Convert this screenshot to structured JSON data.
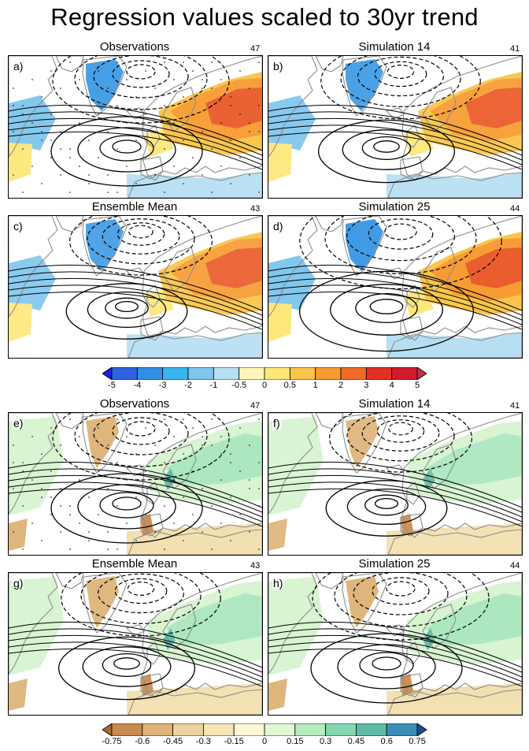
{
  "title": "Regression values scaled to 30yr trend",
  "panels": [
    {
      "letter": "a)",
      "title": "Observations",
      "number": "47",
      "scheme": "temp",
      "intensity": 1.0,
      "stipple": true
    },
    {
      "letter": "b)",
      "title": "Simulation 14",
      "number": "41",
      "scheme": "temp",
      "intensity": 0.9,
      "stipple": false
    },
    {
      "letter": "c)",
      "title": "Ensemble Mean",
      "number": "43",
      "scheme": "temp",
      "intensity": 0.8,
      "stipple": false
    },
    {
      "letter": "d)",
      "title": "Simulation 25",
      "number": "44",
      "scheme": "temp",
      "intensity": 1.15,
      "stipple": false
    },
    {
      "letter": "e)",
      "title": "Observations",
      "number": "47",
      "scheme": "precip",
      "intensity": 1.0,
      "stipple": true
    },
    {
      "letter": "f)",
      "title": "Simulation 14",
      "number": "41",
      "scheme": "precip",
      "intensity": 0.8,
      "stipple": false
    },
    {
      "letter": "g)",
      "title": "Ensemble Mean",
      "number": "43",
      "scheme": "precip",
      "intensity": 0.9,
      "stipple": false
    },
    {
      "letter": "h)",
      "title": "Simulation 25",
      "number": "44",
      "scheme": "precip",
      "intensity": 1.0,
      "stipple": false
    }
  ],
  "colorbars": [
    {
      "name": "temperature",
      "labels": [
        "-5",
        "-4",
        "-3",
        "-2",
        "-1",
        "-0.5",
        "0",
        "0.5",
        "1",
        "2",
        "3",
        "4",
        "5"
      ],
      "colors": [
        "#1f1fe8",
        "#2f62e0",
        "#2f8fe6",
        "#38b4ef",
        "#7fc6ee",
        "#b6dff3",
        "#fff6b8",
        "#fde779",
        "#f9c447",
        "#f79b30",
        "#f06a2a",
        "#e43022",
        "#d11b2f",
        "#c0304a"
      ]
    },
    {
      "name": "precipitation",
      "labels": [
        "-0.75",
        "-0.6",
        "-0.45",
        "-0.3",
        "-0.15",
        "0",
        "0.15",
        "0.3",
        "0.45",
        "0.6",
        "0.75"
      ],
      "colors": [
        "#a8692f",
        "#c98b4d",
        "#ddb377",
        "#ecd29e",
        "#f6e6b7",
        "#fdf7d6",
        "#e0f7d4",
        "#b4ecbd",
        "#84d6b2",
        "#5dbba7",
        "#3a8fb6",
        "#16508f"
      ]
    }
  ],
  "scheme_colors": {
    "temp": {
      "cold_strong": "#3e9ae4",
      "cold": "#7fc6ee",
      "cool": "#b6dff3",
      "warm": "#fde779",
      "hot": "#f9c447",
      "hotter": "#f79b30",
      "hottest": "#ea5a28"
    },
    "precip": {
      "dry_strong": "#c98b4d",
      "dry": "#ddb377",
      "dry_light": "#f3dfae",
      "wet_light": "#d6f4cf",
      "wet": "#a8e6bd",
      "wet_strong": "#5dbba7",
      "wet_max": "#2f6fa8"
    }
  }
}
